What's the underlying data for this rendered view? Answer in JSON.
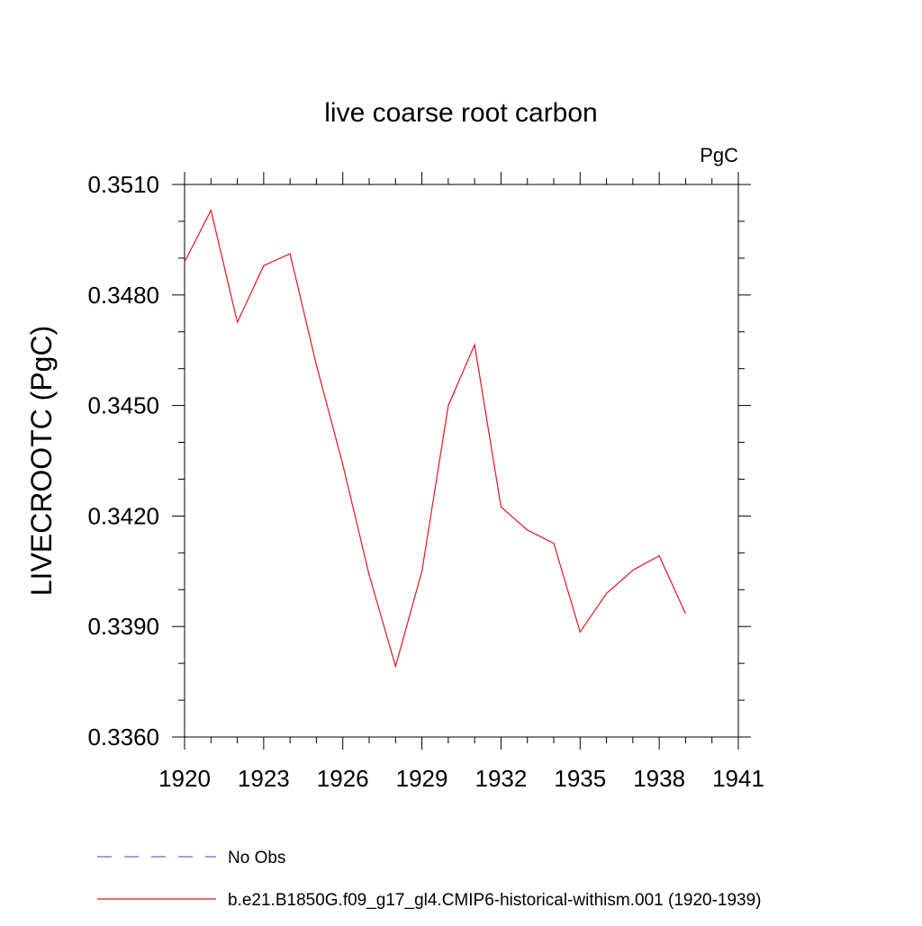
{
  "chart_data": {
    "type": "line",
    "title": "live coarse root carbon",
    "units_label": "PgC",
    "ylabel": "LIVECROOTC  (PgC)",
    "xlabel": "",
    "xlim": [
      1920,
      1941
    ],
    "ylim": [
      0.336,
      0.351
    ],
    "x_ticks": [
      "1920",
      "1923",
      "1926",
      "1929",
      "1932",
      "1935",
      "1938",
      "1941"
    ],
    "y_ticks": [
      "0.3360",
      "0.3390",
      "0.3420",
      "0.3450",
      "0.3480",
      "0.3510"
    ],
    "grid": false,
    "legend_position": "bottom",
    "series": [
      {
        "name": "No Obs",
        "color": "#6a6ab8",
        "dash": "dashed",
        "x": [],
        "y": []
      },
      {
        "name": "b.e21.B1850G.f09_g17_gl4.CMIP6-historical-withism.001 (1920-1939)",
        "color": "#e8141e",
        "dash": "solid",
        "x": [
          1920,
          1921,
          1922,
          1923,
          1924,
          1925,
          1926,
          1927,
          1928,
          1929,
          1930,
          1931,
          1932,
          1933,
          1934,
          1935,
          1936,
          1937,
          1938,
          1939
        ],
        "y": [
          0.3489,
          0.3503,
          0.34726,
          0.3488,
          0.34912,
          0.3461,
          0.3434,
          0.3404,
          0.33792,
          0.3405,
          0.345,
          0.34665,
          0.34225,
          0.34162,
          0.34126,
          0.33885,
          0.3399,
          0.34053,
          0.34092,
          0.33935
        ]
      }
    ]
  }
}
